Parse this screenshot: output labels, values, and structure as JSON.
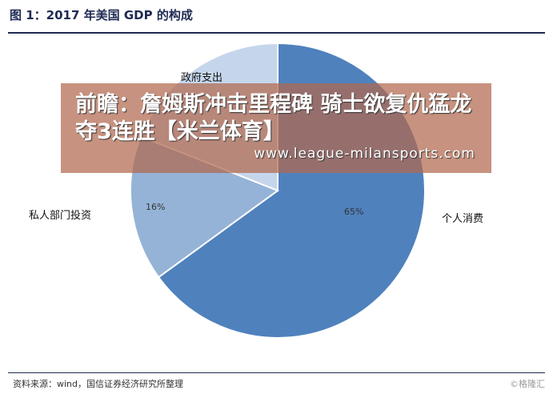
{
  "figure": {
    "title": "图 1：2017 年美国 GDP 的构成",
    "source": "资料来源：wind，国信证券经济研究所整理",
    "logo_text": "©格隆汇"
  },
  "banner": {
    "headline": "前瞻：詹姆斯冲击里程碑 骑士欲复仇猛龙夺3连胜【米兰体育】",
    "url": "www.league-milansports.com"
  },
  "chart_data": {
    "type": "pie",
    "title": "图 1：2017 年美国 GDP 的构成",
    "slices": [
      {
        "name": "个人消费",
        "value": 65,
        "label": "65%",
        "color": "#4f81bd"
      },
      {
        "name": "私人部门投资",
        "value": 16,
        "label": "16%",
        "color": "#95b3d7"
      },
      {
        "name": "政府支出",
        "value": 19,
        "label": "",
        "color": "#c5d6ec"
      }
    ],
    "start_angle_deg": 0,
    "direction": "clockwise",
    "legend": "none"
  }
}
